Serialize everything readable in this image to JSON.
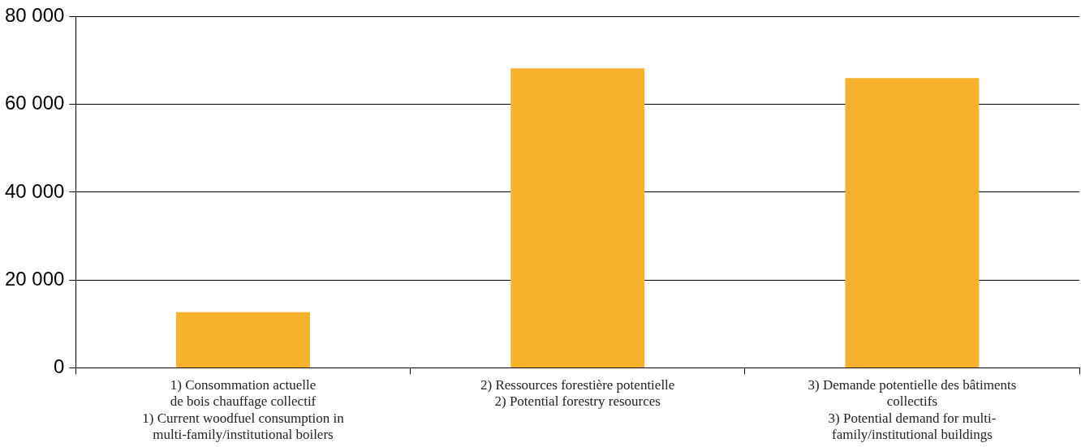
{
  "chart_data": {
    "type": "bar",
    "categories": [
      "1) Consommation actuelle\nde bois chauffage collectif\n1) Current woodfuel consumption in\nmulti-family/institutional boilers",
      "2) Ressources forestière potentielle\n2) Potential forestry resources",
      "3) Demande potentielle des bâtiments\ncollectifs\n3) Potential demand for multi-\nfamily/institutional buildings"
    ],
    "values": [
      12700,
      68200,
      66000
    ],
    "color": "#f5b22a",
    "ylim": [
      0,
      80000
    ],
    "yticks": [
      {
        "value": 0,
        "label": "0"
      },
      {
        "value": 20000,
        "label": "20 000"
      },
      {
        "value": 40000,
        "label": "40 000"
      },
      {
        "value": 60000,
        "label": "60 000"
      },
      {
        "value": 80000,
        "label": "80 000"
      }
    ],
    "grid": "y",
    "legend": false
  }
}
